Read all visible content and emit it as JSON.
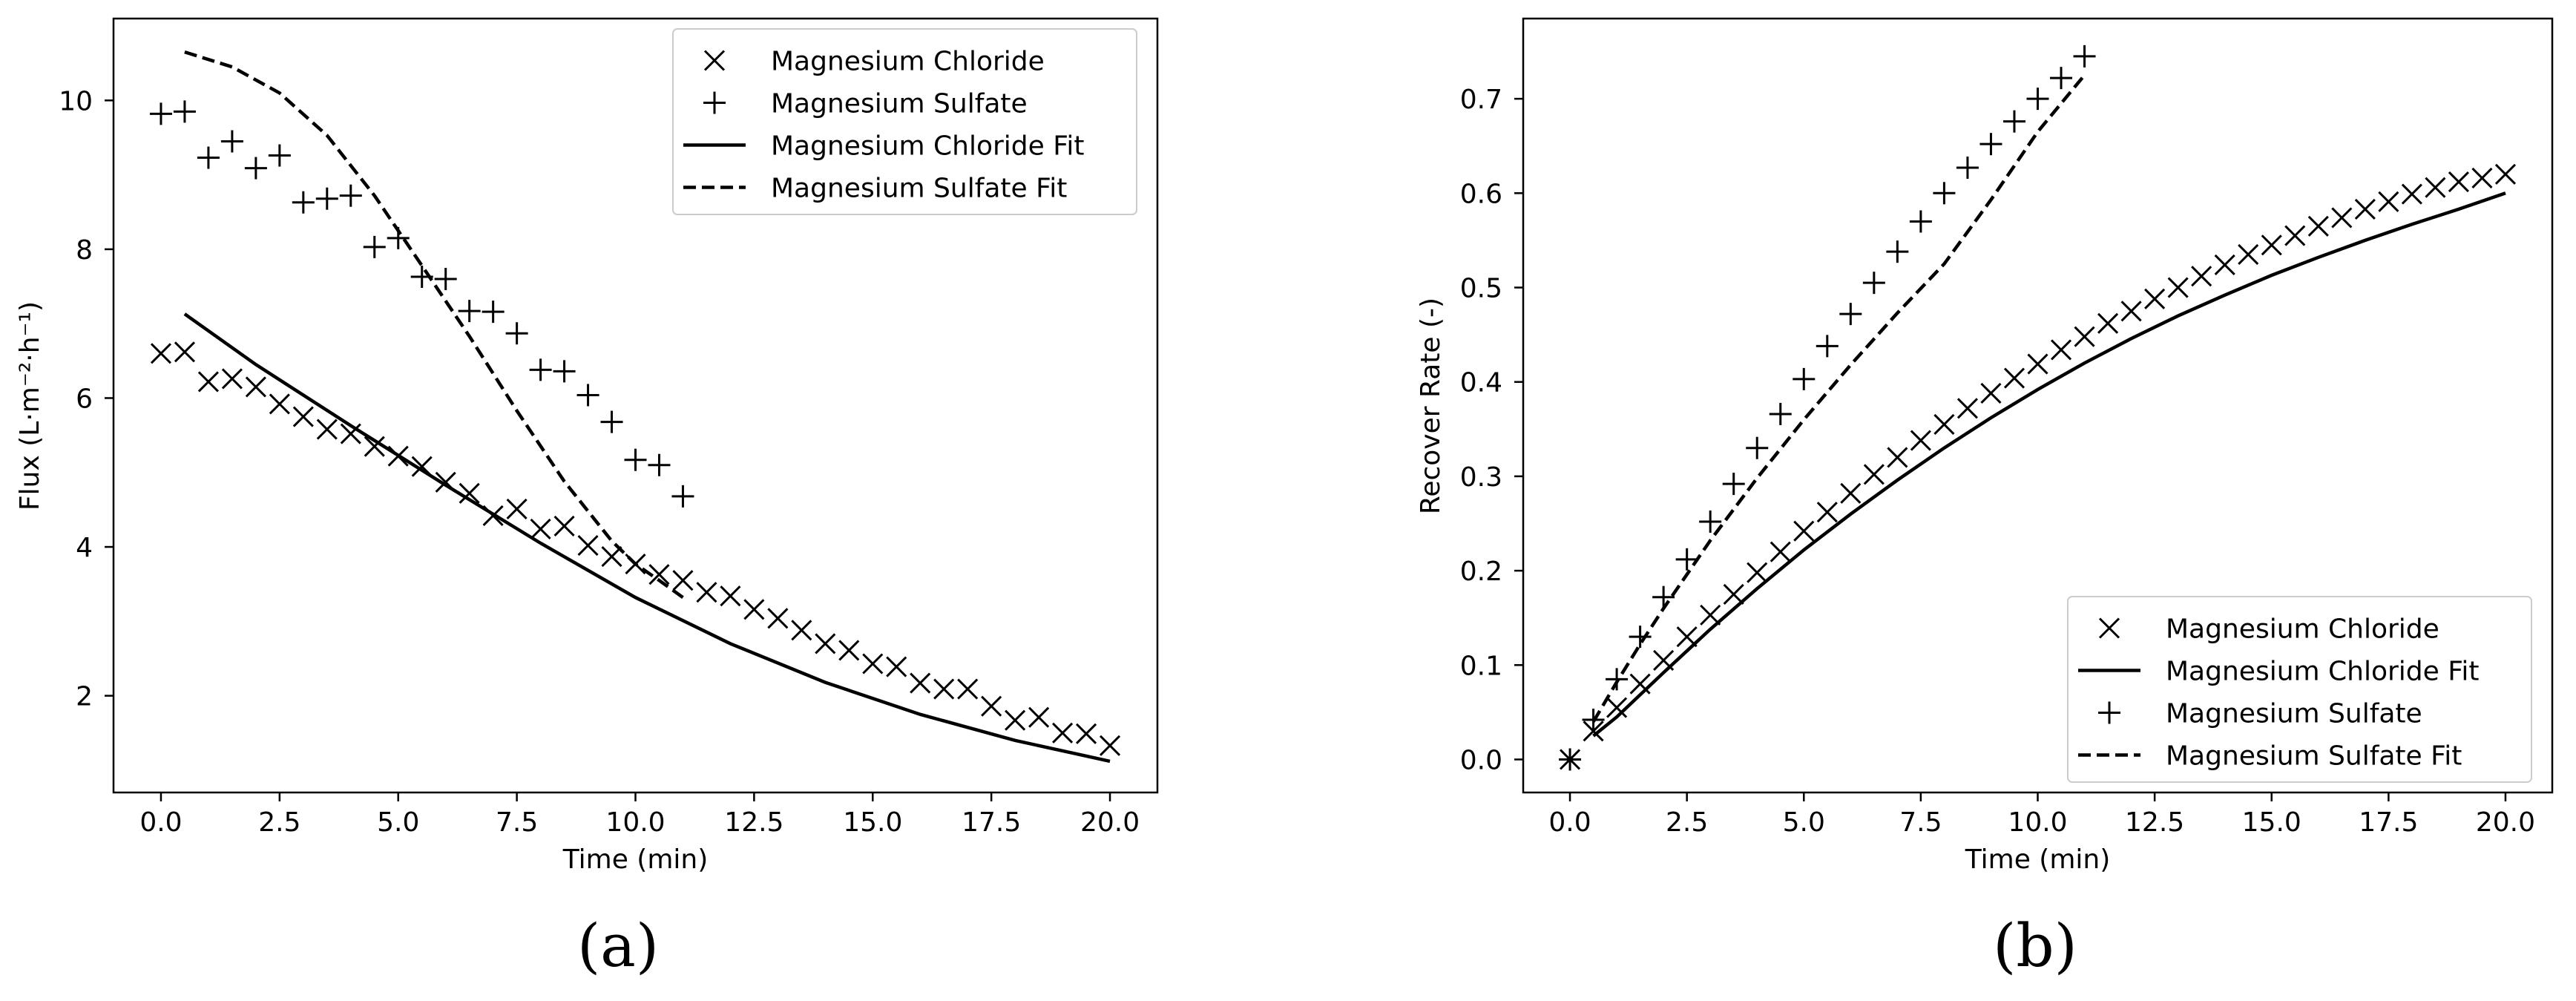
{
  "chart_data": [
    {
      "panel_label": "(a)",
      "type": "scatter",
      "title": "",
      "xlabel": "Time (min)",
      "ylabel": "Flux (L·m⁻²·h⁻¹)",
      "xlim": [
        -1.0,
        21.0
      ],
      "ylim": [
        0.7,
        11.1
      ],
      "xticks": [
        "0.0",
        "2.5",
        "5.0",
        "7.5",
        "10.0",
        "12.5",
        "15.0",
        "17.5",
        "20.0"
      ],
      "yticks": [
        "2",
        "4",
        "6",
        "8",
        "10"
      ],
      "grid": false,
      "legend_position": "top-right",
      "series": [
        {
          "name": "Magnesium Chloride",
          "kind": "scatter",
          "marker": "x",
          "x": [
            0,
            0.5,
            1,
            1.5,
            2,
            2.5,
            3,
            3.5,
            4,
            4.5,
            5,
            5.5,
            6,
            6.5,
            7,
            7.5,
            8,
            8.5,
            9,
            9.5,
            10,
            10.5,
            11,
            11.5,
            12,
            12.5,
            13,
            13.5,
            14,
            14.5,
            15,
            15.5,
            16,
            16.5,
            17,
            17.5,
            18,
            18.5,
            19,
            19.5,
            20
          ],
          "y": [
            6.6,
            6.62,
            6.22,
            6.26,
            6.15,
            5.92,
            5.75,
            5.58,
            5.52,
            5.35,
            5.22,
            5.08,
            4.87,
            4.72,
            4.42,
            4.51,
            4.24,
            4.28,
            4.02,
            3.87,
            3.77,
            3.63,
            3.55,
            3.39,
            3.34,
            3.16,
            3.04,
            2.88,
            2.7,
            2.61,
            2.43,
            2.39,
            2.17,
            2.09,
            2.09,
            1.86,
            1.67,
            1.71,
            1.5,
            1.49,
            1.33
          ]
        },
        {
          "name": "Magnesium Sulfate",
          "kind": "scatter",
          "marker": "+",
          "x": [
            0,
            0.5,
            1,
            1.5,
            2,
            2.5,
            3,
            3.5,
            4,
            4.5,
            5,
            5.5,
            6,
            6.5,
            7,
            7.5,
            8,
            8.5,
            9,
            9.5,
            10,
            10.5,
            11
          ],
          "y": [
            9.82,
            9.85,
            9.23,
            9.45,
            9.09,
            9.26,
            8.63,
            8.68,
            8.72,
            8.03,
            8.15,
            7.63,
            7.6,
            7.17,
            7.16,
            6.87,
            6.38,
            6.36,
            6.04,
            5.68,
            5.17,
            5.1,
            4.68
          ]
        },
        {
          "name": "Magnesium Chloride Fit",
          "kind": "line",
          "style": "solid",
          "x": [
            0.5,
            2,
            4,
            6,
            8,
            10,
            12,
            14,
            16,
            18,
            20
          ],
          "y": [
            7.13,
            6.45,
            5.63,
            4.83,
            4.05,
            3.32,
            2.7,
            2.18,
            1.75,
            1.4,
            1.12
          ]
        },
        {
          "name": "Magnesium Sulfate Fit",
          "kind": "line",
          "style": "dashed",
          "x": [
            0.5,
            1.5,
            2.5,
            3.5,
            4.5,
            5.5,
            6.5,
            7.5,
            8.5,
            9.5,
            10,
            10.5,
            11
          ],
          "y": [
            10.65,
            10.45,
            10.1,
            9.53,
            8.72,
            7.78,
            6.83,
            5.83,
            4.88,
            4.08,
            3.77,
            3.55,
            3.32
          ]
        }
      ]
    },
    {
      "panel_label": "(b)",
      "type": "scatter",
      "title": "",
      "xlabel": "Time (min)",
      "ylabel": "Recover Rate (-)",
      "xlim": [
        -1.0,
        21.0
      ],
      "ylim": [
        -0.035,
        0.785
      ],
      "xticks": [
        "0.0",
        "2.5",
        "5.0",
        "7.5",
        "10.0",
        "12.5",
        "15.0",
        "17.5",
        "20.0"
      ],
      "yticks": [
        "0.0",
        "0.1",
        "0.2",
        "0.3",
        "0.4",
        "0.5",
        "0.6",
        "0.7"
      ],
      "grid": false,
      "legend_position": "bottom-right",
      "series": [
        {
          "name": "Magnesium Chloride",
          "kind": "scatter",
          "marker": "x",
          "x": [
            0,
            0.5,
            1,
            1.5,
            2,
            2.5,
            3,
            3.5,
            4,
            4.5,
            5,
            5.5,
            6,
            6.5,
            7,
            7.5,
            8,
            8.5,
            9,
            9.5,
            10,
            10.5,
            11,
            11.5,
            12,
            12.5,
            13,
            13.5,
            14,
            14.5,
            15,
            15.5,
            16,
            16.5,
            17,
            17.5,
            18,
            18.5,
            19,
            19.5,
            20
          ],
          "y": [
            0,
            0.03,
            0.055,
            0.08,
            0.105,
            0.13,
            0.153,
            0.175,
            0.198,
            0.22,
            0.242,
            0.262,
            0.282,
            0.302,
            0.32,
            0.338,
            0.355,
            0.372,
            0.388,
            0.404,
            0.419,
            0.434,
            0.448,
            0.462,
            0.475,
            0.488,
            0.5,
            0.512,
            0.524,
            0.535,
            0.545,
            0.555,
            0.565,
            0.574,
            0.583,
            0.591,
            0.599,
            0.606,
            0.612,
            0.616,
            0.62
          ]
        },
        {
          "name": "Magnesium Chloride Fit",
          "kind": "line",
          "style": "solid",
          "x": [
            0.5,
            1,
            2,
            3,
            4,
            5,
            6,
            7,
            8,
            9,
            10,
            11,
            12,
            13,
            14,
            15,
            16,
            17,
            18,
            19,
            20
          ],
          "y": [
            0.025,
            0.045,
            0.092,
            0.138,
            0.181,
            0.222,
            0.26,
            0.296,
            0.33,
            0.362,
            0.392,
            0.42,
            0.446,
            0.47,
            0.492,
            0.513,
            0.532,
            0.55,
            0.567,
            0.583,
            0.6
          ]
        },
        {
          "name": "Magnesium Sulfate",
          "kind": "scatter",
          "marker": "+",
          "x": [
            0,
            0.5,
            1,
            1.5,
            2,
            2.5,
            3,
            3.5,
            4,
            4.5,
            5,
            5.5,
            6,
            6.5,
            7,
            7.5,
            8,
            8.5,
            9,
            9.5,
            10,
            10.5,
            11
          ],
          "y": [
            0,
            0.042,
            0.085,
            0.13,
            0.172,
            0.212,
            0.252,
            0.292,
            0.33,
            0.366,
            0.403,
            0.438,
            0.472,
            0.505,
            0.538,
            0.57,
            0.6,
            0.627,
            0.652,
            0.676,
            0.7,
            0.722,
            0.745
          ]
        },
        {
          "name": "Magnesium Sulfate Fit",
          "kind": "line",
          "style": "dashed",
          "x": [
            0.5,
            1,
            1.5,
            2,
            3,
            4,
            5,
            6,
            7,
            8,
            9,
            10,
            11
          ],
          "y": [
            0.04,
            0.082,
            0.122,
            0.16,
            0.232,
            0.298,
            0.36,
            0.418,
            0.473,
            0.525,
            0.593,
            0.665,
            0.725
          ]
        }
      ]
    }
  ]
}
